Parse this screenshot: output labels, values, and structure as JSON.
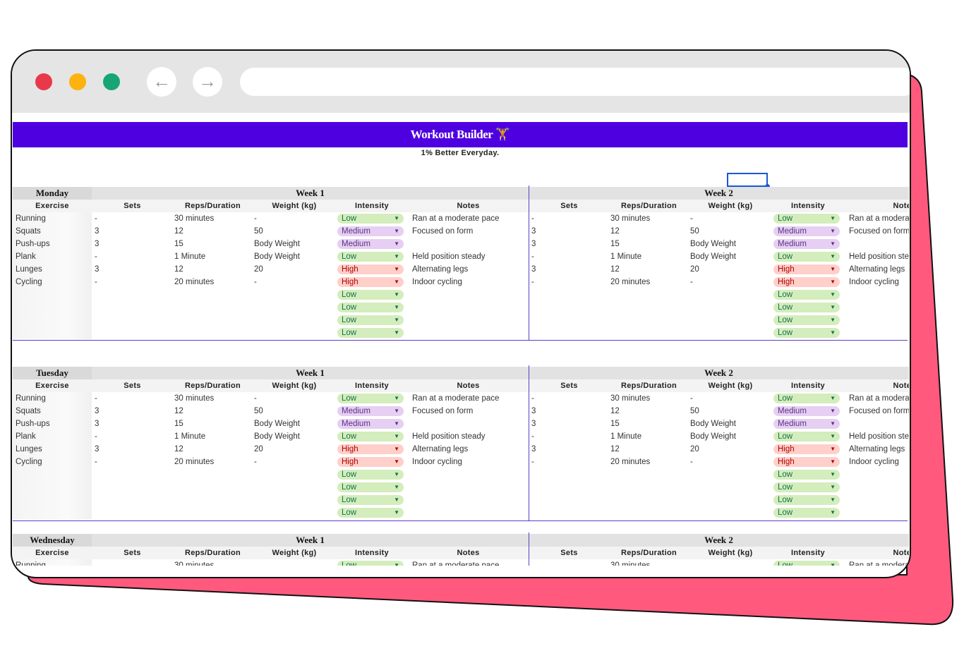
{
  "browser": {
    "window_controls": [
      "#e8384a",
      "#fcb20f",
      "#17a673"
    ],
    "back_icon": "←",
    "forward_icon": "→",
    "url": ""
  },
  "header": {
    "title": "Workout Builder",
    "icon": "🏋",
    "subtitle": "1% Better Everyday."
  },
  "colors": {
    "banner": "#4f00e0",
    "backing": "#ff5a7e",
    "Low": {
      "bg": "#d4edbc",
      "fg": "#11734b"
    },
    "Medium": {
      "bg": "#e6cff2",
      "fg": "#5a3286"
    },
    "High": {
      "bg": "#ffcfc9",
      "fg": "#b10202"
    }
  },
  "columns": [
    "Exercise",
    "Sets",
    "Reps/Duration",
    "Weight (kg)",
    "Intensity",
    "Notes"
  ],
  "days": [
    {
      "name": "Monday",
      "exercises": [
        "Running",
        "Squats",
        "Push-ups",
        "Plank",
        "Lunges",
        "Cycling"
      ],
      "weeks": [
        {
          "label": "Week 1",
          "rows": [
            [
              "-",
              "30 minutes",
              "-",
              "Low",
              "Ran at a moderate pace"
            ],
            [
              "3",
              "12",
              "50",
              "Medium",
              "Focused on form"
            ],
            [
              "3",
              "15",
              "Body Weight",
              "Medium",
              ""
            ],
            [
              "-",
              "1 Minute",
              "Body Weight",
              "Low",
              "Held position steady"
            ],
            [
              "3",
              "12",
              "20",
              "High",
              "Alternating legs"
            ],
            [
              "-",
              "20 minutes",
              "-",
              "High",
              "Indoor cycling"
            ],
            [
              "",
              "",
              "",
              "Low",
              ""
            ],
            [
              "",
              "",
              "",
              "Low",
              ""
            ],
            [
              "",
              "",
              "",
              "Low",
              ""
            ],
            [
              "",
              "",
              "",
              "Low",
              ""
            ]
          ]
        },
        {
          "label": "Week 2",
          "rows": [
            [
              "-",
              "30 minutes",
              "-",
              "Low",
              "Ran at a moderate pace"
            ],
            [
              "3",
              "12",
              "50",
              "Medium",
              "Focused on form"
            ],
            [
              "3",
              "15",
              "Body Weight",
              "Medium",
              ""
            ],
            [
              "-",
              "1 Minute",
              "Body Weight",
              "Low",
              "Held position steady"
            ],
            [
              "3",
              "12",
              "20",
              "High",
              "Alternating legs"
            ],
            [
              "-",
              "20 minutes",
              "-",
              "High",
              "Indoor cycling"
            ],
            [
              "",
              "",
              "",
              "Low",
              ""
            ],
            [
              "",
              "",
              "",
              "Low",
              ""
            ],
            [
              "",
              "",
              "",
              "Low",
              ""
            ],
            [
              "",
              "",
              "",
              "Low",
              ""
            ]
          ]
        }
      ]
    },
    {
      "name": "Tuesday",
      "exercises": [
        "Running",
        "Squats",
        "Push-ups",
        "Plank",
        "Lunges",
        "Cycling"
      ],
      "weeks": [
        {
          "label": "Week 1",
          "rows": [
            [
              "-",
              "30 minutes",
              "-",
              "Low",
              "Ran at a moderate pace"
            ],
            [
              "3",
              "12",
              "50",
              "Medium",
              "Focused on form"
            ],
            [
              "3",
              "15",
              "Body Weight",
              "Medium",
              ""
            ],
            [
              "-",
              "1 Minute",
              "Body Weight",
              "Low",
              "Held position steady"
            ],
            [
              "3",
              "12",
              "20",
              "High",
              "Alternating legs"
            ],
            [
              "-",
              "20 minutes",
              "-",
              "High",
              "Indoor cycling"
            ],
            [
              "",
              "",
              "",
              "Low",
              ""
            ],
            [
              "",
              "",
              "",
              "Low",
              ""
            ],
            [
              "",
              "",
              "",
              "Low",
              ""
            ],
            [
              "",
              "",
              "",
              "Low",
              ""
            ]
          ]
        },
        {
          "label": "Week 2",
          "rows": [
            [
              "-",
              "30 minutes",
              "-",
              "Low",
              "Ran at a moderate pace"
            ],
            [
              "3",
              "12",
              "50",
              "Medium",
              "Focused on form"
            ],
            [
              "3",
              "15",
              "Body Weight",
              "Medium",
              ""
            ],
            [
              "-",
              "1 Minute",
              "Body Weight",
              "Low",
              "Held position steady"
            ],
            [
              "3",
              "12",
              "20",
              "High",
              "Alternating legs"
            ],
            [
              "-",
              "20 minutes",
              "-",
              "High",
              "Indoor cycling"
            ],
            [
              "",
              "",
              "",
              "Low",
              ""
            ],
            [
              "",
              "",
              "",
              "Low",
              ""
            ],
            [
              "",
              "",
              "",
              "Low",
              ""
            ],
            [
              "",
              "",
              "",
              "Low",
              ""
            ]
          ]
        }
      ]
    },
    {
      "name": "Wednesday",
      "exercises": [
        "Running"
      ],
      "weeks": [
        {
          "label": "Week 1",
          "rows": [
            [
              "",
              "30 minutes",
              "",
              "Low",
              "Ran at a moderate pace"
            ]
          ]
        },
        {
          "label": "Week 2",
          "rows": [
            [
              "",
              "30 minutes",
              "",
              "Low",
              "Ran at a moderate pace"
            ]
          ]
        }
      ]
    }
  ]
}
